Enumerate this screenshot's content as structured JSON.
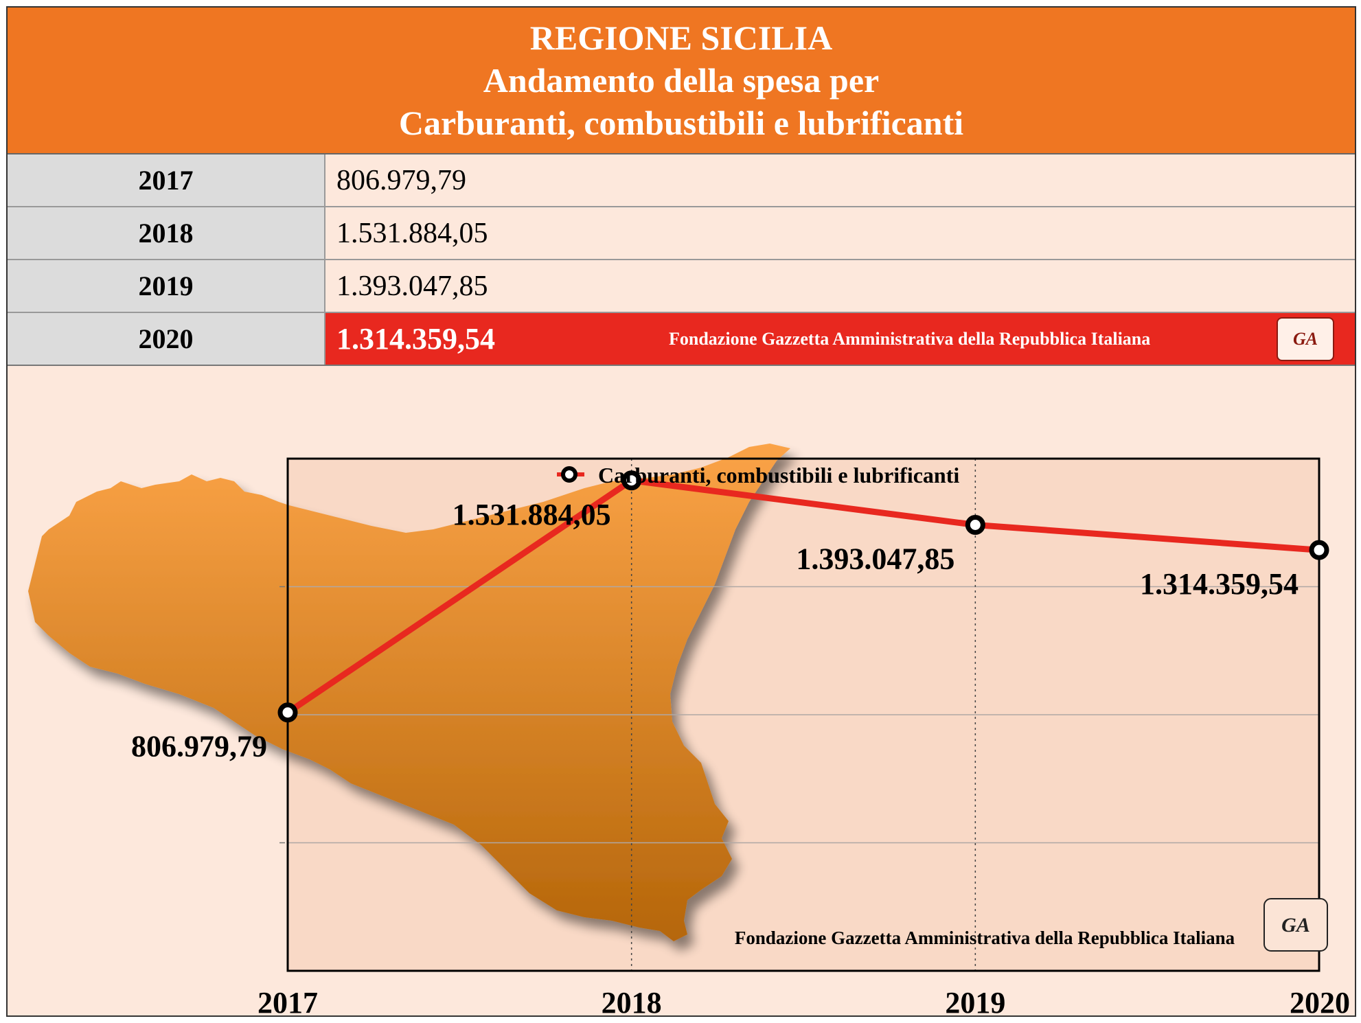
{
  "header": {
    "line1": "REGIONE SICILIA",
    "line2": "Andamento della spesa per",
    "line3": "Carburanti, combustibili e lubrificanti"
  },
  "table": [
    {
      "year": "2017",
      "value": "806.979,79"
    },
    {
      "year": "2018",
      "value": "1.531.884,05"
    },
    {
      "year": "2019",
      "value": "1.393.047,85"
    },
    {
      "year": "2020",
      "value": "1.314.359,54"
    }
  ],
  "credit": "Fondazione Gazzetta Amministrativa della Repubblica Italiana",
  "seal_text": "GA",
  "colors": {
    "header_bg": "#ef7622",
    "highlight_row": "#e8281f",
    "line": "#e8281f",
    "map_top": "#fba347",
    "map_bottom": "#b5660a"
  },
  "chart_data": {
    "type": "line",
    "title": "",
    "xlabel": "",
    "ylabel": "",
    "categories": [
      "2017",
      "2018",
      "2019",
      "2020"
    ],
    "series": [
      {
        "name": "Carburanti, combustibili e lubrificanti",
        "values": [
          806979.79,
          1531884.05,
          1393047.85,
          1314359.54
        ],
        "labels": [
          "806.979,79",
          "1.531.884,05",
          "1.393.047,85",
          "1.314.359,54"
        ]
      }
    ],
    "ylim": [
      0,
      1600000
    ],
    "grid": "horizontal gridlines; vertical dotted lines at each year",
    "legend": "top-center"
  }
}
